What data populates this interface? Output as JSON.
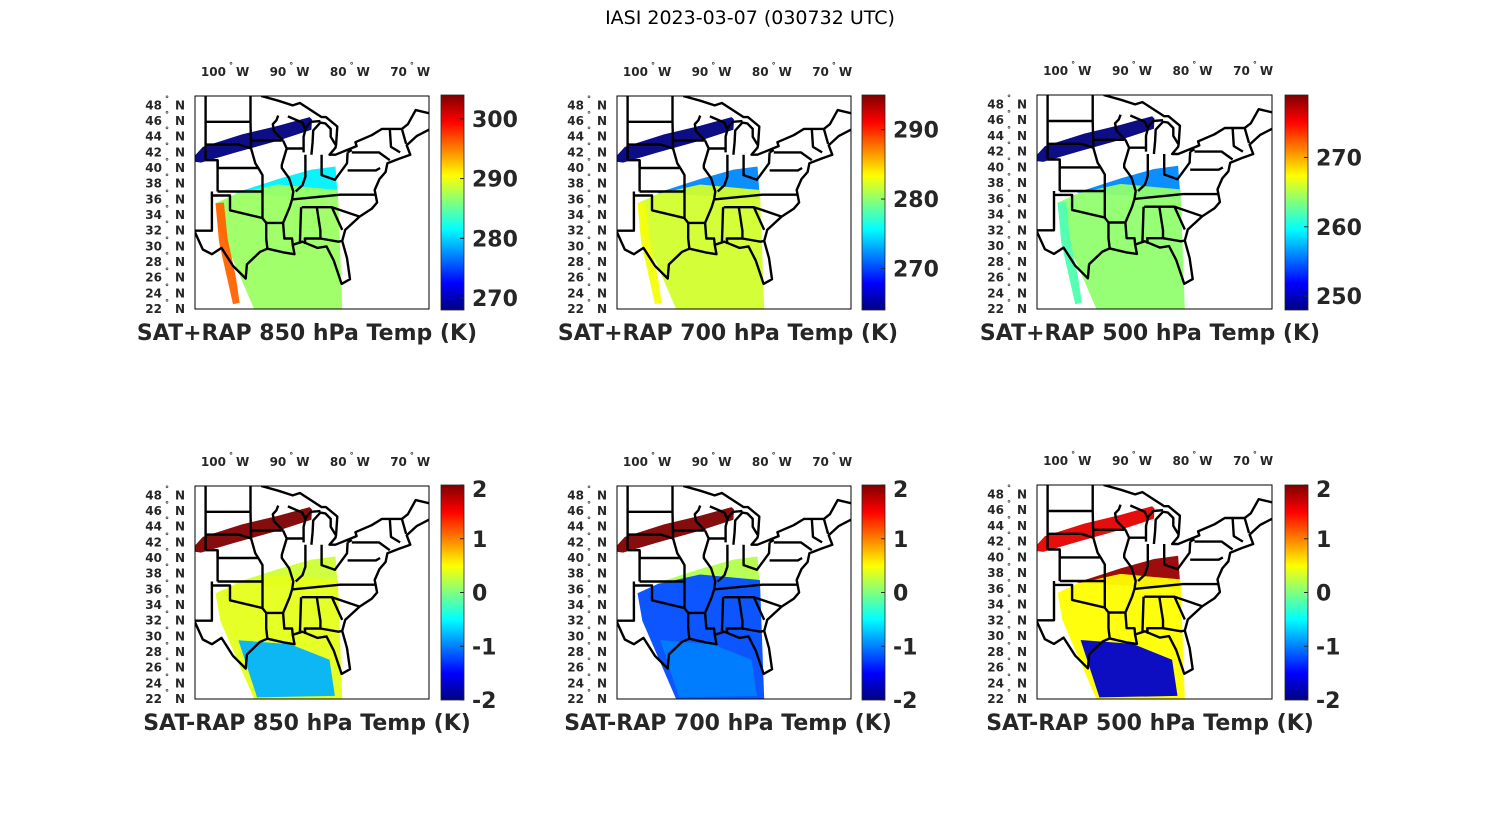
{
  "figure_title": "IASI 2023-03-07 (030732 UTC)",
  "colormap": "jet",
  "chart_data": [
    {
      "type": "heatmap",
      "title": "SAT+RAP 850 hPa Temp (K)",
      "x_tick_labels": [
        "100",
        "90",
        "80",
        "70"
      ],
      "x_tick_values": [
        -100,
        -90,
        -80,
        -70
      ],
      "x_unit": "W",
      "y_tick_labels": [
        "48",
        "46",
        "44",
        "42",
        "40",
        "38",
        "36",
        "34",
        "32",
        "30",
        "28",
        "26",
        "24",
        "22"
      ],
      "y_tick_values": [
        48,
        46,
        44,
        42,
        40,
        38,
        36,
        34,
        32,
        30,
        28,
        26,
        24,
        22
      ],
      "y_unit": "N",
      "colorbar": {
        "clim": [
          268,
          304
        ],
        "ticks": [
          270,
          280,
          290,
          300
        ],
        "tick_labels": [
          "270",
          "280",
          "290",
          "300"
        ]
      },
      "swaths": [
        {
          "region": "northern",
          "value": 268
        },
        {
          "region": "middle",
          "value": 281
        },
        {
          "region": "southern",
          "value": 287
        },
        {
          "region": "texas-west",
          "value": 296
        }
      ]
    },
    {
      "type": "heatmap",
      "title": "SAT+RAP 700 hPa Temp (K)",
      "x_tick_labels": [
        "100",
        "90",
        "80",
        "70"
      ],
      "x_tick_values": [
        -100,
        -90,
        -80,
        -70
      ],
      "x_unit": "W",
      "y_tick_labels": [
        "48",
        "46",
        "44",
        "42",
        "40",
        "38",
        "36",
        "34",
        "32",
        "30",
        "28",
        "26",
        "24",
        "22"
      ],
      "y_tick_values": [
        48,
        46,
        44,
        42,
        40,
        38,
        36,
        34,
        32,
        30,
        28,
        26,
        24,
        22
      ],
      "y_unit": "N",
      "colorbar": {
        "clim": [
          264,
          295
        ],
        "ticks": [
          270,
          280,
          290
        ],
        "tick_labels": [
          "270",
          "280",
          "290"
        ]
      },
      "swaths": [
        {
          "region": "northern",
          "value": 264
        },
        {
          "region": "middle",
          "value": 272
        },
        {
          "region": "southern",
          "value": 282
        },
        {
          "region": "texas-west",
          "value": 283
        }
      ]
    },
    {
      "type": "heatmap",
      "title": "SAT+RAP 500 hPa Temp (K)",
      "x_tick_labels": [
        "100",
        "90",
        "80",
        "70"
      ],
      "x_tick_values": [
        -100,
        -90,
        -80,
        -70
      ],
      "x_unit": "W",
      "y_tick_labels": [
        "48",
        "46",
        "44",
        "42",
        "40",
        "38",
        "36",
        "34",
        "32",
        "30",
        "28",
        "26",
        "24",
        "22"
      ],
      "y_tick_values": [
        48,
        46,
        44,
        42,
        40,
        38,
        36,
        34,
        32,
        30,
        28,
        26,
        24,
        22
      ],
      "y_unit": "N",
      "colorbar": {
        "clim": [
          248,
          279
        ],
        "ticks": [
          250,
          260,
          270
        ],
        "tick_labels": [
          "250",
          "260",
          "270"
        ]
      },
      "swaths": [
        {
          "region": "northern",
          "value": 248
        },
        {
          "region": "middle",
          "value": 256
        },
        {
          "region": "southern",
          "value": 264
        },
        {
          "region": "texas-west",
          "value": 262
        }
      ]
    },
    {
      "type": "heatmap",
      "title": "SAT-RAP 850 hPa Temp (K)",
      "x_tick_labels": [
        "100",
        "90",
        "80",
        "70"
      ],
      "x_tick_values": [
        -100,
        -90,
        -80,
        -70
      ],
      "x_unit": "W",
      "y_tick_labels": [
        "48",
        "46",
        "44",
        "42",
        "40",
        "38",
        "36",
        "34",
        "32",
        "30",
        "28",
        "26",
        "24",
        "22"
      ],
      "y_tick_values": [
        48,
        46,
        44,
        42,
        40,
        38,
        36,
        34,
        32,
        30,
        28,
        26,
        24,
        22
      ],
      "y_unit": "N",
      "colorbar": {
        "clim": [
          -2,
          2
        ],
        "ticks": [
          -2,
          -1,
          0,
          1,
          2
        ],
        "tick_labels": [
          "-2",
          "-1",
          "0",
          "1",
          "2"
        ]
      },
      "swaths": [
        {
          "region": "northern",
          "value": 2
        },
        {
          "region": "middle",
          "value": 0.3
        },
        {
          "region": "southern",
          "value": 0.4
        },
        {
          "region": "gulf",
          "value": -0.8
        }
      ]
    },
    {
      "type": "heatmap",
      "title": "SAT-RAP 700 hPa Temp (K)",
      "x_tick_labels": [
        "100",
        "90",
        "80",
        "70"
      ],
      "x_tick_values": [
        -100,
        -90,
        -80,
        -70
      ],
      "x_unit": "W",
      "y_tick_labels": [
        "48",
        "46",
        "44",
        "42",
        "40",
        "38",
        "36",
        "34",
        "32",
        "30",
        "28",
        "26",
        "24",
        "22"
      ],
      "y_tick_values": [
        48,
        46,
        44,
        42,
        40,
        38,
        36,
        34,
        32,
        30,
        28,
        26,
        24,
        22
      ],
      "y_unit": "N",
      "colorbar": {
        "clim": [
          -2,
          2
        ],
        "ticks": [
          -2,
          -1,
          0,
          1,
          2
        ],
        "tick_labels": [
          "-2",
          "-1",
          "0",
          "1",
          "2"
        ]
      },
      "swaths": [
        {
          "region": "northern",
          "value": 2
        },
        {
          "region": "middle",
          "value": 0.2
        },
        {
          "region": "southern",
          "value": -1.2
        },
        {
          "region": "gulf",
          "value": -1.0
        }
      ]
    },
    {
      "type": "heatmap",
      "title": "SAT-RAP 500 hPa Temp (K)",
      "x_tick_labels": [
        "100",
        "90",
        "80",
        "70"
      ],
      "x_tick_values": [
        -100,
        -90,
        -80,
        -70
      ],
      "x_unit": "W",
      "y_tick_labels": [
        "48",
        "46",
        "44",
        "42",
        "40",
        "38",
        "36",
        "34",
        "32",
        "30",
        "28",
        "26",
        "24",
        "22"
      ],
      "y_tick_values": [
        48,
        46,
        44,
        42,
        40,
        38,
        36,
        34,
        32,
        30,
        28,
        26,
        24,
        22
      ],
      "y_unit": "N",
      "colorbar": {
        "clim": [
          -2,
          2
        ],
        "ticks": [
          -2,
          -1,
          0,
          1,
          2
        ],
        "tick_labels": [
          "-2",
          "-1",
          "0",
          "1",
          "2"
        ]
      },
      "swaths": [
        {
          "region": "northern",
          "value": 1.6
        },
        {
          "region": "middle",
          "value": 1.9
        },
        {
          "region": "southern",
          "value": 0.5
        },
        {
          "region": "gulf",
          "value": -1.7
        }
      ]
    }
  ]
}
